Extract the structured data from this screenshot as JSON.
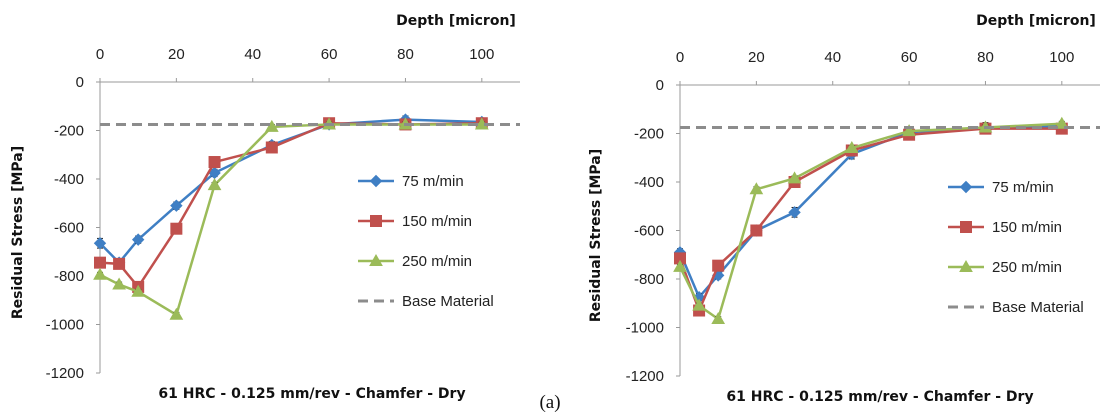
{
  "panel_label": "(a)",
  "chart_data": [
    {
      "type": "line",
      "title": "",
      "caption": "61 HRC - 0.125 mm/rev - Chamfer - Dry",
      "xlabel": "Depth [micron]",
      "ylabel": "Residual Stress [MPa]",
      "xlim": [
        0,
        110
      ],
      "ylim": [
        -1200,
        0
      ],
      "xticks": [
        0,
        20,
        40,
        60,
        80,
        100
      ],
      "yticks": [
        0,
        -200,
        -400,
        -600,
        -800,
        -1000,
        -1200
      ],
      "x_axis_position": "top",
      "grid": false,
      "legend_position": "right-middle",
      "series": [
        {
          "name": "75 m/min",
          "color": "#3f7fc4",
          "marker": "diamond",
          "x": [
            0,
            5,
            10,
            20,
            30,
            45,
            60,
            80,
            100
          ],
          "y": [
            -665,
            -745,
            -650,
            -510,
            -375,
            -260,
            -175,
            -155,
            -165
          ],
          "err": [
            20,
            15,
            15,
            15,
            15,
            15,
            10,
            15,
            15
          ]
        },
        {
          "name": "150 m/min",
          "color": "#c0504d",
          "marker": "square",
          "x": [
            0,
            5,
            10,
            20,
            30,
            45,
            60,
            80,
            100
          ],
          "y": [
            -745,
            -750,
            -845,
            -605,
            -330,
            -270,
            -170,
            -175,
            -170
          ],
          "err": [
            15,
            10,
            15,
            10,
            10,
            10,
            10,
            10,
            10
          ]
        },
        {
          "name": "250 m/min",
          "color": "#9bbb59",
          "marker": "triangle",
          "x": [
            0,
            5,
            10,
            20,
            30,
            45,
            60,
            80,
            100
          ],
          "y": [
            -795,
            -835,
            -865,
            -960,
            -425,
            -185,
            -175,
            -175,
            -175
          ],
          "err": [
            10,
            10,
            10,
            10,
            10,
            10,
            10,
            10,
            10
          ]
        },
        {
          "name": "Base Material",
          "color": "#8c8c8c",
          "marker": "dashed-line",
          "x": [
            0,
            110
          ],
          "y": [
            -175,
            -175
          ]
        }
      ]
    },
    {
      "type": "line",
      "title": "",
      "caption": "61 HRC - 0.125 mm/rev - Chamfer - Dry",
      "xlabel": "Depth [micron]",
      "ylabel": "Residual Stress [MPa]",
      "xlim": [
        0,
        110
      ],
      "ylim": [
        -1200,
        0
      ],
      "xticks": [
        0,
        20,
        40,
        60,
        80,
        100
      ],
      "yticks": [
        0,
        -200,
        -400,
        -600,
        -800,
        -1000,
        -1200
      ],
      "x_axis_position": "top",
      "grid": false,
      "legend_position": "right-middle",
      "series": [
        {
          "name": "75 m/min",
          "color": "#3f7fc4",
          "marker": "diamond",
          "x": [
            0,
            5,
            10,
            20,
            30,
            45,
            60,
            80,
            100
          ],
          "y": [
            -690,
            -875,
            -785,
            -600,
            -525,
            -285,
            -195,
            -175,
            -170
          ],
          "err": [
            15,
            15,
            15,
            15,
            20,
            20,
            15,
            20,
            15
          ]
        },
        {
          "name": "150 m/min",
          "color": "#c0504d",
          "marker": "square",
          "x": [
            0,
            5,
            10,
            20,
            30,
            45,
            60,
            80,
            100
          ],
          "y": [
            -715,
            -930,
            -745,
            -600,
            -400,
            -270,
            -205,
            -180,
            -180
          ],
          "err": [
            15,
            15,
            15,
            15,
            15,
            15,
            10,
            15,
            10
          ]
        },
        {
          "name": "250 m/min",
          "color": "#9bbb59",
          "marker": "triangle",
          "x": [
            0,
            5,
            10,
            20,
            30,
            45,
            60,
            80,
            100
          ],
          "y": [
            -750,
            -910,
            -965,
            -430,
            -385,
            -260,
            -190,
            -175,
            -160
          ],
          "err": [
            10,
            10,
            10,
            10,
            10,
            10,
            10,
            10,
            10
          ]
        },
        {
          "name": "Base Material",
          "color": "#8c8c8c",
          "marker": "dashed-line",
          "x": [
            0,
            110
          ],
          "y": [
            -175,
            -175
          ]
        }
      ]
    }
  ]
}
